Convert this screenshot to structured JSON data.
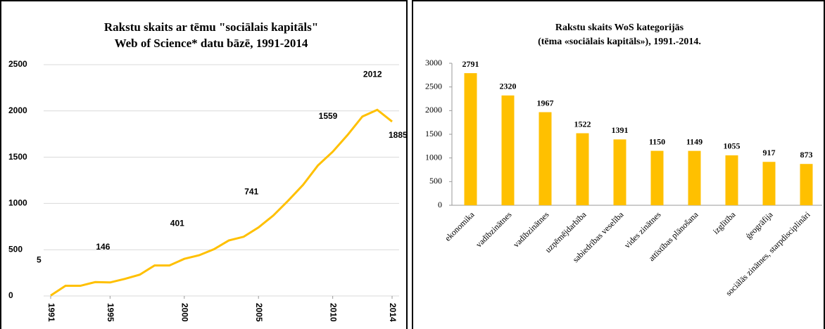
{
  "chart_data": [
    {
      "type": "line",
      "title": "Rakstu skaits ar tēmu \"sociālais kapitāls\"",
      "subtitle": "Web of Science* datu bāzē, 1991-2014",
      "x": [
        1991,
        1992,
        1993,
        1994,
        1995,
        1996,
        1997,
        1998,
        1999,
        2000,
        2001,
        2002,
        2003,
        2004,
        2005,
        2006,
        2007,
        2008,
        2009,
        2010,
        2011,
        2012,
        2013,
        2014
      ],
      "values": [
        5,
        110,
        110,
        150,
        146,
        185,
        230,
        330,
        330,
        401,
        440,
        505,
        600,
        640,
        741,
        870,
        1030,
        1200,
        1410,
        1559,
        1740,
        1940,
        2012,
        1885
      ],
      "value_labels": [
        "5",
        null,
        null,
        null,
        "146",
        null,
        null,
        null,
        null,
        "401",
        null,
        null,
        null,
        null,
        "741",
        null,
        null,
        null,
        null,
        "1559",
        null,
        null,
        "2012",
        "1885"
      ],
      "color": "#ffc000",
      "xlim": [
        1991,
        2014
      ],
      "xticks": [
        1991,
        1995,
        2000,
        2005,
        2010,
        2014
      ],
      "ylim": [
        0,
        2500
      ],
      "yticks": [
        0,
        500,
        1000,
        1500,
        2000,
        2500
      ],
      "grid": true
    },
    {
      "type": "bar",
      "title": "Rakstu skaits WoS kategorijās",
      "subtitle": "(tēma «sociālais kapitāls»), 1991.-2014.",
      "categories": [
        "ekonomika",
        "vadībzinātnes",
        "vadībzinātnes",
        "uzņēmējdarbība",
        "sabiedrības veselība",
        "vides zinātnes",
        "attīstības plānošana",
        "izglītība",
        "ģeogrāfija",
        "sociālās zinātnes, starpdisciplināri"
      ],
      "values": [
        2791,
        2320,
        1967,
        1522,
        1391,
        1150,
        1149,
        1055,
        917,
        873
      ],
      "color": "#ffc000",
      "ylim": [
        0,
        3000
      ],
      "yticks": [
        0,
        500,
        1000,
        1500,
        2000,
        2500,
        3000
      ],
      "grid": false
    }
  ]
}
